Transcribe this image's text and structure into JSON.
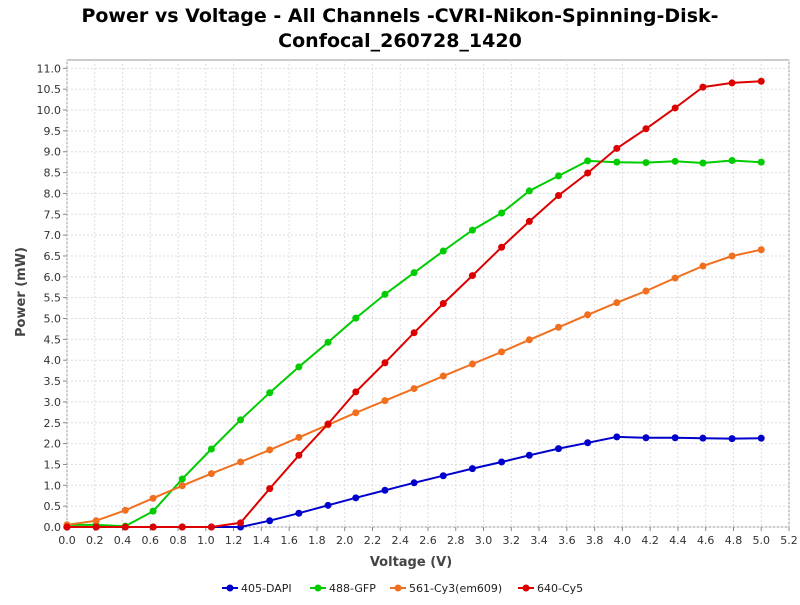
{
  "chart_data": {
    "type": "line",
    "title_lines": [
      "Power vs Voltage - All Channels -CVRI-Nikon-Spinning-Disk-",
      "Confocal_260728_1420"
    ],
    "xlabel": "Voltage (V)",
    "ylabel": "Power (mW)",
    "xlim": [
      0.0,
      5.2
    ],
    "ylim": [
      0.0,
      11.2
    ],
    "x_ticks": [
      "0.0",
      "0.2",
      "0.4",
      "0.6",
      "0.8",
      "1.0",
      "1.2",
      "1.4",
      "1.6",
      "1.8",
      "2.0",
      "2.2",
      "2.4",
      "2.6",
      "2.8",
      "3.0",
      "3.2",
      "3.4",
      "3.6",
      "3.8",
      "4.0",
      "4.2",
      "4.4",
      "4.6",
      "4.8",
      "5.0",
      "5.2"
    ],
    "y_ticks": [
      "0.0",
      "0.5",
      "1.0",
      "1.5",
      "2.0",
      "2.5",
      "3.0",
      "3.5",
      "4.0",
      "4.5",
      "5.0",
      "5.5",
      "6.0",
      "6.5",
      "7.0",
      "7.5",
      "8.0",
      "8.5",
      "9.0",
      "9.5",
      "10.0",
      "10.5",
      "11.0"
    ],
    "grid": true,
    "legend_position": "bottom",
    "x": [
      0.0,
      0.21,
      0.42,
      0.62,
      0.83,
      1.04,
      1.25,
      1.46,
      1.67,
      1.88,
      2.08,
      2.29,
      2.5,
      2.71,
      2.92,
      3.13,
      3.33,
      3.54,
      3.75,
      3.96,
      4.17,
      4.38,
      4.58,
      4.79,
      5.0
    ],
    "series": [
      {
        "name": "405-DAPI",
        "color": "#0000cc",
        "values": [
          0.0,
          0.0,
          0.0,
          0.0,
          0.0,
          0.0,
          0.0,
          0.15,
          0.33,
          0.52,
          0.7,
          0.88,
          1.06,
          1.23,
          1.4,
          1.56,
          1.72,
          1.88,
          2.02,
          2.16,
          2.14,
          2.14,
          2.13,
          2.12,
          2.13
        ]
      },
      {
        "name": "488-GFP",
        "color": "#00cc00",
        "values": [
          0.05,
          0.05,
          0.02,
          0.38,
          1.15,
          1.87,
          2.57,
          3.22,
          3.84,
          4.43,
          5.01,
          5.58,
          6.1,
          6.62,
          7.12,
          7.53,
          8.06,
          8.42,
          8.78,
          8.75,
          8.74,
          8.77,
          8.73,
          8.79,
          8.75
        ]
      },
      {
        "name": "561-Cy3(em609)",
        "color": "#f07020",
        "values": [
          0.05,
          0.15,
          0.4,
          0.69,
          0.99,
          1.28,
          1.56,
          1.85,
          2.15,
          2.45,
          2.74,
          3.03,
          3.32,
          3.62,
          3.91,
          4.2,
          4.49,
          4.79,
          5.09,
          5.38,
          5.66,
          5.97,
          6.26,
          6.5,
          6.65
        ]
      },
      {
        "name": "640-Cy5",
        "color": "#dd0000",
        "values": [
          0.0,
          0.0,
          0.0,
          0.0,
          0.0,
          0.0,
          0.1,
          0.92,
          1.72,
          2.47,
          3.24,
          3.94,
          4.66,
          5.36,
          6.03,
          6.71,
          7.33,
          7.95,
          8.49,
          9.08,
          9.55,
          10.05,
          10.55,
          10.65,
          10.69
        ]
      }
    ]
  }
}
